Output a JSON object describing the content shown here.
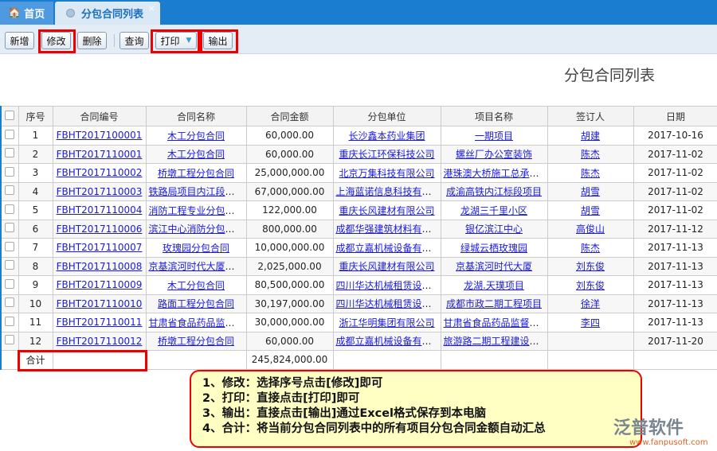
{
  "tabs": [
    {
      "label": "首页",
      "icon": "home-icon"
    },
    {
      "label": "分包合同列表",
      "icon": "page-icon",
      "close": "×"
    }
  ],
  "toolbar": {
    "buttons": [
      "新增",
      "修改",
      "删除",
      "查询",
      "打印",
      "输出"
    ],
    "print_dropdown": "▼"
  },
  "page_title": "分包合同列表",
  "table": {
    "columns": [
      "序号",
      "合同编号",
      "合同名称",
      "合同金额",
      "分包单位",
      "项目名称",
      "签订人",
      "日期"
    ],
    "rows": [
      [
        "1",
        "FBHT2017100001",
        "木工分包合同",
        "60,000.00",
        "长沙鑫本药业集团",
        "一期项目",
        "胡建",
        "2017-10-16"
      ],
      [
        "2",
        "FBHT2017110001",
        "木工分包合同",
        "60,000.00",
        "重庆长江环保科技公司",
        "螺丝厂办公室装饰",
        "陈杰",
        "2017-11-02"
      ],
      [
        "3",
        "FBHT2017110002",
        "桥墩工程分包合同",
        "25,000,000.00",
        "北京万集科技有限公司",
        "港珠澳大桥施工总承包项目",
        "陈杰",
        "2017-11-02"
      ],
      [
        "4",
        "FBHT2017110003",
        "铁路局项目内江段分包合同",
        "67,000,000.00",
        "上海蓝诺信息科技有限公司",
        "成渝高铁内江标段项目",
        "胡雪",
        "2017-11-02"
      ],
      [
        "5",
        "FBHT2017110004",
        "消防工程专业分包合同",
        "122,000.00",
        "重庆长风建材有限公司",
        "龙湖三千里小区",
        "胡雪",
        "2017-11-02"
      ],
      [
        "6",
        "FBHT2017110006",
        "滨江中心消防分包合同",
        "800,000.00",
        "成都华强建筑材料有限公司",
        "银亿滨江中心",
        "高俊山",
        "2017-11-12"
      ],
      [
        "7",
        "FBHT2017110007",
        "玫瑰园分包合同",
        "10,000,000.00",
        "成都立嘉机械设备有限公司",
        "绿城云栖玫瑰园",
        "陈杰",
        "2017-11-13"
      ],
      [
        "8",
        "FBHT2017110008",
        "京基滨河时代大厦分包合同",
        "2,025,000.00",
        "重庆长风建材有限公司",
        "京基滨河时代大厦",
        "刘东俊",
        "2017-11-13"
      ],
      [
        "9",
        "FBHT2017110009",
        "木工分包合同",
        "80,500,000.00",
        "四川华达机械租赁设备公司",
        "龙湖.天璞项目",
        "刘东俊",
        "2017-11-13"
      ],
      [
        "10",
        "FBHT2017110010",
        "路面工程分包合同",
        "30,197,000.00",
        "四川华达机械租赁设备公司",
        "成都市政二期工程项目",
        "徐洋",
        "2017-11-13"
      ],
      [
        "11",
        "FBHT2017110011",
        "甘肃省食品药品监督分包合同",
        "30,000,000.00",
        "浙江华明集团有限公司",
        "甘肃省食品药品监督管理局",
        "李四",
        "2017-11-13"
      ],
      [
        "12",
        "FBHT2017110012",
        "桥墩工程分包合同",
        "60,000.00",
        "成都立嘉机械设备有限公司",
        "旅游路二期工程建设项目",
        "",
        "2017-11-20"
      ]
    ],
    "total_label": "合计",
    "total_amount": "245,824,000.00"
  },
  "callout": [
    "1、修改：选择序号点击[修改]即可",
    "2、打印：直接点击[打印]即可",
    "3、输出：直接点击[输出]通过Excel格式保存到本电脑",
    "4、合计：将当前分包合同列表中的所有项目分包合同金额自动汇总"
  ],
  "logo": {
    "name": "泛普软件",
    "url": "www.fanpusoft.com"
  },
  "colors": {
    "tabbar": "#1b7dd0",
    "highlight": "#ee0000",
    "callout_bg": "#ffffc4",
    "link": "#1a1adf"
  }
}
